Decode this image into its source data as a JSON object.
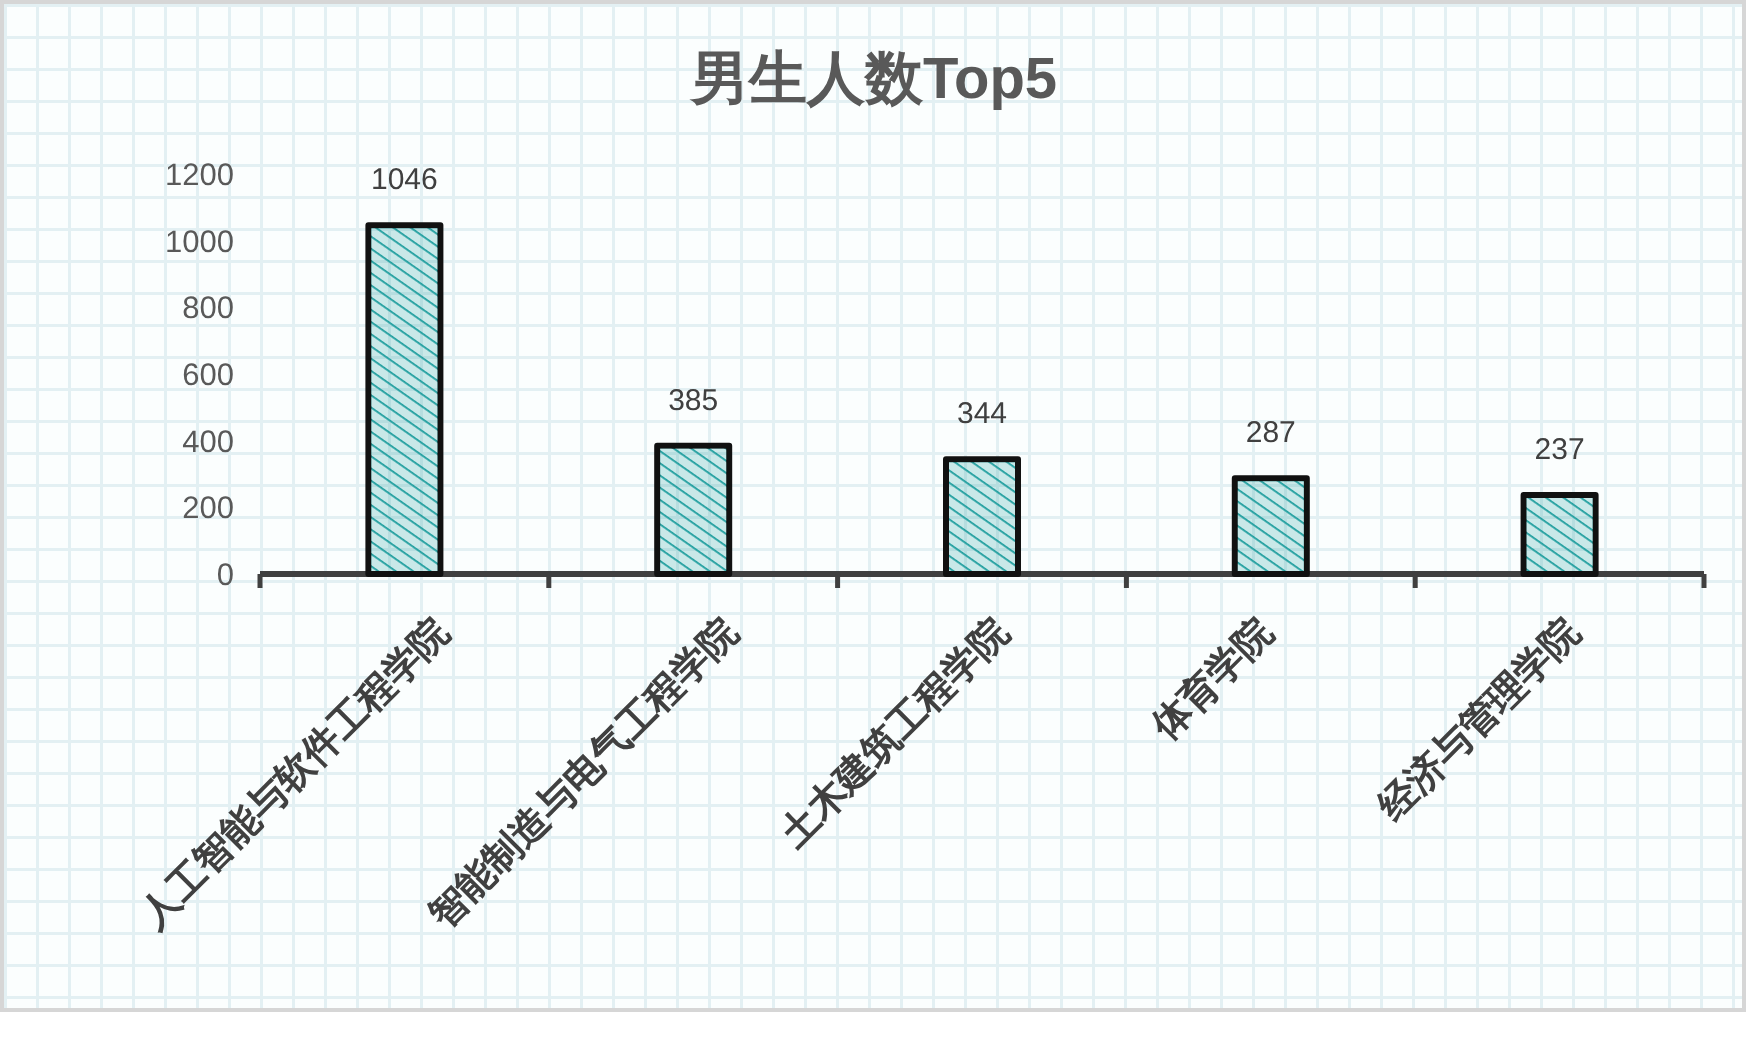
{
  "chart_data": {
    "type": "bar",
    "title": "男生人数Top5",
    "categories": [
      "人工智能与软件工程学院",
      "智能制造与电气工程学院",
      "土木建筑工程学院",
      "体育学院",
      "经济与管理学院"
    ],
    "values": [
      1046,
      385,
      344,
      287,
      237
    ],
    "color": "#1f9e9e",
    "ylim": [
      0,
      1200
    ],
    "yticks": [
      0,
      200,
      400,
      600,
      800,
      1000,
      1200
    ],
    "data_labels": true
  }
}
